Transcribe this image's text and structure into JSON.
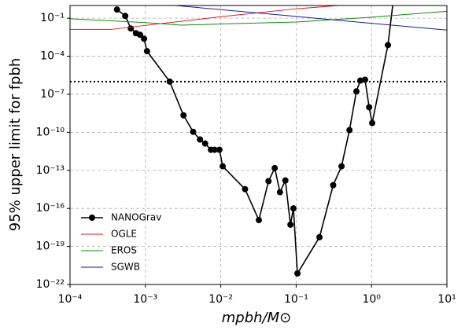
{
  "chart_data": {
    "type": "line",
    "x_label": "mpbh/M⊙",
    "y_label": "95% upper limit for fpbh",
    "xlog": true,
    "ylog": true,
    "grid": true,
    "legend": "lower left",
    "xlim": [
      0.0001,
      10
    ],
    "ylim": [
      1e-22,
      1
    ],
    "xticks": [
      {
        "value": 0.0001,
        "label": "10⁻⁴"
      },
      {
        "value": 0.001,
        "label": "10⁻³"
      },
      {
        "value": 0.01,
        "label": "10⁻²"
      },
      {
        "value": 0.1,
        "label": "10⁻¹"
      },
      {
        "value": 1,
        "label": "10⁰"
      },
      {
        "value": 10,
        "label": "10¹"
      }
    ],
    "yticks": [
      {
        "value": 1e-22,
        "label": "10⁻²²"
      },
      {
        "value": 1e-19,
        "label": "10⁻¹⁹"
      },
      {
        "value": 1e-16,
        "label": "10⁻¹⁶"
      },
      {
        "value": 1e-13,
        "label": "10⁻¹³"
      },
      {
        "value": 1e-10,
        "label": "10⁻¹⁰"
      },
      {
        "value": 1e-07,
        "label": "10⁻⁷"
      },
      {
        "value": 0.0001,
        "label": "10⁻⁴"
      },
      {
        "value": 0.1,
        "label": "10⁻¹"
      }
    ],
    "hline": 1e-06,
    "series": [
      {
        "name": "NANOGrav",
        "color": "#000000",
        "marker": true,
        "x": [
          0.00042,
          0.00054,
          0.00064,
          0.00075,
          0.00085,
          0.00096,
          0.00105,
          0.0021,
          0.0032,
          0.0043,
          0.0053,
          0.0062,
          0.0074,
          0.0083,
          0.0096,
          0.0106,
          0.021,
          0.032,
          0.043,
          0.052,
          0.061,
          0.072,
          0.084,
          0.092,
          0.104,
          0.204,
          0.31,
          0.4,
          0.51,
          0.63,
          0.71,
          0.82,
          0.93,
          1.02,
          1.65,
          2.0
        ],
        "values": [
          0.48,
          0.15,
          0.0155,
          0.0065,
          0.0049,
          0.0024,
          0.00025,
          1e-06,
          2.2e-09,
          1.1e-10,
          2.7e-11,
          1.3e-11,
          4.2e-12,
          4.2e-12,
          4.2e-12,
          2.1e-13,
          3.3e-15,
          1.2e-17,
          1.4e-14,
          1.5e-13,
          1.9e-15,
          1.6e-14,
          5.2e-18,
          1e-16,
          7.4e-22,
          5.4e-19,
          6.8e-15,
          2.1e-13,
          1.5e-10,
          1.7e-07,
          1.2e-06,
          1.4e-06,
          9.5e-09,
          5.4e-10,
          0.00076,
          10
        ]
      },
      {
        "name": "OGLE",
        "color": "#e31a1c",
        "x": [
          0.0001,
          0.00035,
          0.001,
          0.01,
          0.1,
          0.45
        ],
        "values": [
          0.013,
          0.013,
          0.027,
          0.13,
          0.55,
          1.1
        ]
      },
      {
        "name": "EROS",
        "color": "#138a13",
        "x": [
          0.0001,
          0.001,
          0.003,
          0.01,
          0.1,
          1,
          10
        ],
        "values": [
          0.09,
          0.045,
          0.028,
          0.035,
          0.05,
          0.12,
          0.35
        ]
      },
      {
        "name": "SGWB",
        "color": "#1a1a9a",
        "x": [
          0.0025,
          10
        ],
        "values": [
          1,
          0.0115
        ]
      }
    ]
  }
}
